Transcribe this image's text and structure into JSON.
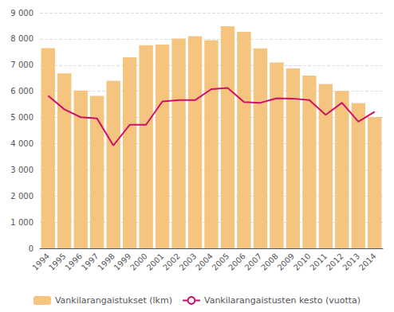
{
  "chart_data": {
    "type": "bar",
    "categories": [
      "1994",
      "1995",
      "1996",
      "1997",
      "1998",
      "1999",
      "2000",
      "2001",
      "2002",
      "2003",
      "2004",
      "2005",
      "2006",
      "2007",
      "2008",
      "2009",
      "2010",
      "2011",
      "2012",
      "2013",
      "2014"
    ],
    "series": [
      {
        "name": "Vankilarangaistukset (lkm)",
        "type": "bar",
        "color": "#f5c580",
        "values": [
          7650,
          6680,
          6030,
          5820,
          6400,
          7300,
          7760,
          7780,
          8010,
          8100,
          7950,
          8480,
          8270,
          7640,
          7100,
          6870,
          6600,
          6280,
          6010,
          5550,
          5020
        ]
      },
      {
        "name": "Vankilarangaistusten kesto (vuotta)",
        "type": "line",
        "color": "#cc1166",
        "values": [
          5830,
          5310,
          5010,
          4960,
          3930,
          4720,
          4720,
          5610,
          5660,
          5660,
          6080,
          6130,
          5590,
          5560,
          5730,
          5720,
          5660,
          5100,
          5560,
          4840,
          5220
        ]
      }
    ],
    "ylim": [
      0,
      9000
    ],
    "yticks": [
      0,
      {
        "value": 1000,
        "label": "1 000"
      },
      {
        "value": 2000,
        "label": "2 000"
      },
      {
        "value": 3000,
        "label": "3 000"
      },
      {
        "value": 4000,
        "label": "4 000"
      },
      {
        "value": 5000,
        "label": "5 000"
      },
      {
        "value": 6000,
        "label": "6 000"
      },
      {
        "value": 7000,
        "label": "7 000"
      },
      {
        "value": 8000,
        "label": "8 000"
      },
      {
        "value": 9000,
        "label": "9 000"
      }
    ],
    "grid": true,
    "legend": "bottom"
  }
}
